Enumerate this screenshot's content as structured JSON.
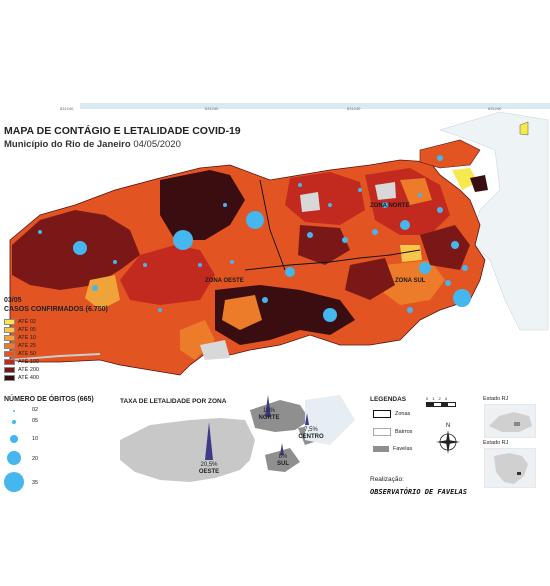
{
  "header": {
    "title": "MAPA DE CONTÁGIO E LETALIDADE COVID-19",
    "subtitle_bold": "Município do Rio de Janeiro",
    "subtitle_date": "04/05/2020"
  },
  "grid_coords": [
    "631240",
    "631240",
    "631240",
    "631240"
  ],
  "cases_legend": {
    "date": "03/05",
    "title": "CASOS CONFIRMADOS (6.750)",
    "items": [
      {
        "label": "ATÉ 02",
        "color": "#f6e94f"
      },
      {
        "label": "ATÉ 05",
        "color": "#f7c64a"
      },
      {
        "label": "ATÉ 10",
        "color": "#f0a338"
      },
      {
        "label": "ATÉ 25",
        "color": "#ec7c2a"
      },
      {
        "label": "ATÉ 50",
        "color": "#e35423"
      },
      {
        "label": "ATÉ 100",
        "color": "#c22a1f"
      },
      {
        "label": "ATÉ 200",
        "color": "#7a1818"
      },
      {
        "label": "ATÉ 400",
        "color": "#3a0d10"
      }
    ]
  },
  "deaths_legend": {
    "title": "NÚMERO DE ÓBITOS (665)",
    "items": [
      {
        "label": "02"
      },
      {
        "label": "05"
      },
      {
        "label": "10"
      },
      {
        "label": "20"
      },
      {
        "label": "35"
      }
    ]
  },
  "zones": {
    "norte": "ZONA NORTE",
    "oeste": "ZONA OESTE",
    "sul": "ZONA SUL"
  },
  "lethality": {
    "title": "TAXA DE LETALIDADE POR ZONA",
    "oeste": {
      "pct": "20,5%",
      "name": "OESTE"
    },
    "norte": {
      "pct": "19%",
      "name": "NORTE"
    },
    "centro": {
      "pct": "7,5%",
      "name": "CENTRO"
    },
    "sul": {
      "pct": "8%",
      "name": "SUL"
    }
  },
  "legend_box": {
    "title": "LEGENDAS",
    "scale": [
      "0",
      "1",
      "2",
      "4"
    ],
    "items": [
      {
        "label": "Zonas"
      },
      {
        "label": "Bairros"
      },
      {
        "label": "Favelas"
      }
    ],
    "north": "N"
  },
  "credit": {
    "label": "Realização:",
    "name": "OBSERVATÓRIO DE FAVELAS"
  },
  "locator": {
    "estado1": "Estado RJ",
    "estado2": "Estado RJ"
  },
  "colors": {
    "bubble": "#45b6ee",
    "sea": "#ffffff",
    "zone_gray": "#b5b5b5"
  }
}
